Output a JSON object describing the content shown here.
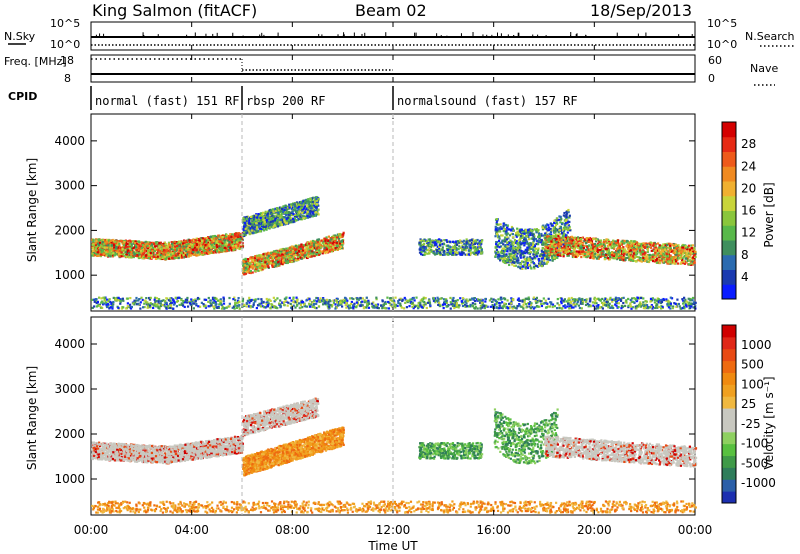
{
  "header": {
    "station": "King Salmon (fitACF)",
    "beam": "Beam 02",
    "date": "18/Sep/2013"
  },
  "colors": {
    "axis": "#000000",
    "guide": "#b8b8b8"
  },
  "chart_data": [
    {
      "type": "line",
      "id": "noise",
      "ylabel_left": "N.Sky",
      "ylabel_right": "N.Search",
      "left_ticks": [
        "10^5",
        "10^0"
      ],
      "right_ticks": [
        "10^5",
        "10^0"
      ],
      "series": [
        {
          "name": "N.Sky",
          "style": "solid"
        },
        {
          "name": "N.Search",
          "style": "dotted"
        }
      ]
    },
    {
      "type": "line",
      "id": "freq_nave",
      "ylabel_left": "Freq. [MHz]",
      "ylabel_right": "Nave",
      "left_ticks": [
        18,
        8
      ],
      "right_ticks": [
        60,
        0
      ],
      "series": [
        {
          "name": "Freq.",
          "style": "solid"
        },
        {
          "name": "Nave",
          "style": "dotted"
        }
      ]
    },
    {
      "type": "table",
      "id": "cpid",
      "ylabel": "CPID",
      "segments": [
        {
          "label": "normal (fast) 151 RF",
          "start_hour": 0,
          "end_hour": 6
        },
        {
          "label": "rbsp 200 RF",
          "start_hour": 6,
          "end_hour": 12
        },
        {
          "label": "normalsound (fast) 157 RF",
          "start_hour": 12,
          "end_hour": 24
        }
      ]
    },
    {
      "type": "heatmap",
      "id": "power",
      "ylabel": "Slant Range [km]",
      "y_ticks": [
        1000,
        2000,
        3000,
        4000
      ],
      "ylim": [
        200,
        4600
      ],
      "colorbar": {
        "label": "Power [dB]",
        "ticks": [
          "4",
          "8",
          "12",
          "16",
          "20",
          "24",
          "28"
        ],
        "colors": [
          "#0a1cff",
          "#1a3ab0",
          "#2b6bb0",
          "#3f8f5e",
          "#58b84a",
          "#8ac63c",
          "#c8d43a",
          "#f0b030",
          "#f08a20",
          "#ee5a1a",
          "#e62a14",
          "#d40000"
        ]
      }
    },
    {
      "type": "heatmap",
      "id": "velocity",
      "ylabel": "Slant Range [km]",
      "y_ticks": [
        1000,
        2000,
        3000,
        4000
      ],
      "ylim": [
        200,
        4600
      ],
      "colorbar": {
        "label": "Velocity [m s⁻¹]",
        "ticks": [
          "1000",
          "500",
          "100",
          "25",
          "-25",
          "-100",
          "-500",
          "-1000"
        ],
        "colors": [
          "#1c2fb0",
          "#2b5fa8",
          "#2f7d5a",
          "#3f9a48",
          "#58c040",
          "#8ed060",
          "#c8c8c0",
          "#c8c8c0",
          "#f0b840",
          "#f0a020",
          "#f08a10",
          "#ee6a10",
          "#e84a14",
          "#e02818",
          "#d00000"
        ]
      }
    }
  ],
  "x_axis": {
    "label": "Time UT",
    "ticks": [
      "00:00",
      "04:00",
      "08:00",
      "12:00",
      "16:00",
      "20:00",
      "00:00"
    ],
    "range_hours": [
      0,
      24
    ]
  }
}
